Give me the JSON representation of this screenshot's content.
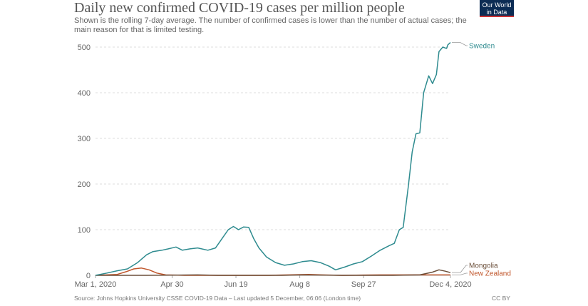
{
  "header": {
    "title": "Daily new confirmed COVID-19 cases per million people",
    "subtitle": "Shown is the rolling 7-day average. The number of confirmed cases is lower than the number of actual cases; the main reason for that is limited testing.",
    "logo_line1": "Our World",
    "logo_line2": "in Data"
  },
  "footer": {
    "source": "Source: Johns Hopkins University CSSE COVID-19 Data – Last updated 5 December, 06:06 (London time)",
    "license": "CC BY"
  },
  "colors": {
    "Sweden": "#2e8b8f",
    "Mongolia": "#6b4f3a",
    "New Zealand": "#c0562b",
    "grid": "#dddddd"
  },
  "chart_data": {
    "type": "line",
    "title": "Daily new confirmed COVID-19 cases per million people",
    "xlabel": "",
    "ylabel": "",
    "x_range": [
      "2020-03-01",
      "2020-12-04"
    ],
    "ylim": [
      0,
      520
    ],
    "y_ticks": [
      0,
      100,
      200,
      300,
      400,
      500
    ],
    "x_ticks": [
      "Mar 1, 2020",
      "Apr 30",
      "Jun 19",
      "Aug 8",
      "Sep 27",
      "Dec 4, 2020"
    ],
    "x_tick_dates": [
      "2020-03-01",
      "2020-04-30",
      "2020-06-19",
      "2020-08-08",
      "2020-09-27",
      "2020-12-04"
    ],
    "grid": true,
    "legend": "end-of-line labels",
    "series": [
      {
        "name": "Sweden",
        "points": [
          [
            "2020-03-01",
            0
          ],
          [
            "2020-03-10",
            5
          ],
          [
            "2020-03-18",
            10
          ],
          [
            "2020-03-26",
            14
          ],
          [
            "2020-04-03",
            28
          ],
          [
            "2020-04-10",
            45
          ],
          [
            "2020-04-15",
            52
          ],
          [
            "2020-04-22",
            55
          ],
          [
            "2020-04-27",
            58
          ],
          [
            "2020-05-03",
            62
          ],
          [
            "2020-05-08",
            55
          ],
          [
            "2020-05-14",
            58
          ],
          [
            "2020-05-20",
            60
          ],
          [
            "2020-05-28",
            55
          ],
          [
            "2020-06-03",
            60
          ],
          [
            "2020-06-08",
            80
          ],
          [
            "2020-06-13",
            100
          ],
          [
            "2020-06-17",
            107
          ],
          [
            "2020-06-21",
            100
          ],
          [
            "2020-06-25",
            106
          ],
          [
            "2020-06-29",
            105
          ],
          [
            "2020-07-03",
            80
          ],
          [
            "2020-07-07",
            60
          ],
          [
            "2020-07-13",
            40
          ],
          [
            "2020-07-20",
            28
          ],
          [
            "2020-07-27",
            22
          ],
          [
            "2020-08-03",
            25
          ],
          [
            "2020-08-10",
            30
          ],
          [
            "2020-08-17",
            32
          ],
          [
            "2020-08-24",
            28
          ],
          [
            "2020-08-31",
            20
          ],
          [
            "2020-09-05",
            12
          ],
          [
            "2020-09-12",
            18
          ],
          [
            "2020-09-19",
            25
          ],
          [
            "2020-09-26",
            30
          ],
          [
            "2020-10-03",
            42
          ],
          [
            "2020-10-10",
            55
          ],
          [
            "2020-10-17",
            65
          ],
          [
            "2020-10-21",
            70
          ],
          [
            "2020-10-25",
            100
          ],
          [
            "2020-10-28",
            105
          ],
          [
            "2020-11-01",
            195
          ],
          [
            "2020-11-04",
            270
          ],
          [
            "2020-11-07",
            310
          ],
          [
            "2020-11-10",
            312
          ],
          [
            "2020-11-13",
            400
          ],
          [
            "2020-11-17",
            437
          ],
          [
            "2020-11-20",
            420
          ],
          [
            "2020-11-23",
            440
          ],
          [
            "2020-11-25",
            490
          ],
          [
            "2020-11-28",
            500
          ],
          [
            "2020-12-01",
            497
          ],
          [
            "2020-12-02",
            505
          ],
          [
            "2020-12-04",
            510
          ]
        ]
      },
      {
        "name": "Mongolia",
        "points": [
          [
            "2020-03-01",
            0
          ],
          [
            "2020-04-10",
            0
          ],
          [
            "2020-05-20",
            1
          ],
          [
            "2020-06-05",
            0
          ],
          [
            "2020-07-25",
            0
          ],
          [
            "2020-08-10",
            1
          ],
          [
            "2020-09-10",
            0
          ],
          [
            "2020-10-20",
            0
          ],
          [
            "2020-11-10",
            1
          ],
          [
            "2020-11-20",
            7
          ],
          [
            "2020-11-25",
            12
          ],
          [
            "2020-11-30",
            9
          ],
          [
            "2020-12-04",
            6
          ]
        ]
      },
      {
        "name": "New Zealand",
        "points": [
          [
            "2020-03-01",
            0
          ],
          [
            "2020-03-18",
            2
          ],
          [
            "2020-03-25",
            8
          ],
          [
            "2020-03-31",
            14
          ],
          [
            "2020-04-06",
            16
          ],
          [
            "2020-04-12",
            12
          ],
          [
            "2020-04-18",
            5
          ],
          [
            "2020-04-25",
            1
          ],
          [
            "2020-05-10",
            0
          ],
          [
            "2020-06-01",
            0
          ],
          [
            "2020-06-20",
            0
          ],
          [
            "2020-07-15",
            0
          ],
          [
            "2020-08-15",
            2
          ],
          [
            "2020-08-25",
            1
          ],
          [
            "2020-09-10",
            0
          ],
          [
            "2020-10-10",
            1
          ],
          [
            "2020-11-15",
            1
          ],
          [
            "2020-12-04",
            1
          ]
        ]
      }
    ]
  }
}
